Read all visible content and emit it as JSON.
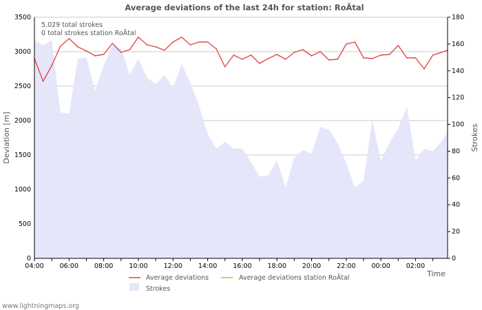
{
  "chart_data": {
    "type": "line",
    "title": "Average deviations of the last 24h for station: RoÃ\u0002tal",
    "xlabel": "Time",
    "ylabel_left": "Deviation  [m]",
    "ylabel_right": "Strokes",
    "x_ticks": [
      "04:00",
      "06:00",
      "08:00",
      "10:00",
      "12:00",
      "14:00",
      "16:00",
      "18:00",
      "20:00",
      "22:00",
      "00:00",
      "02:00"
    ],
    "x_range_hours": [
      0,
      23.85
    ],
    "ylim_left": [
      0,
      3500
    ],
    "y_ticks_left": [
      0,
      500,
      1000,
      1500,
      2000,
      2500,
      3000,
      3500
    ],
    "ylim_right": [
      0,
      180
    ],
    "y_ticks_right": [
      0,
      20,
      40,
      60,
      80,
      100,
      120,
      140,
      160,
      180
    ],
    "grid": true,
    "annotations": [
      "5.029 total strokes",
      "0 total strokes station RoÃ\u0002tal"
    ],
    "series": [
      {
        "name": "Average deviations",
        "axis": "left",
        "color": "#e04848",
        "x_hours": [
          0,
          0.5,
          1,
          1.5,
          2,
          2.5,
          3,
          3.5,
          4,
          4.5,
          5,
          5.5,
          6,
          6.5,
          7,
          7.5,
          8,
          8.5,
          9,
          9.5,
          10,
          10.5,
          11,
          11.5,
          12,
          12.5,
          13,
          13.5,
          14,
          14.5,
          15,
          15.5,
          16,
          16.5,
          17,
          17.5,
          18,
          18.5,
          19,
          19.5,
          20,
          20.5,
          21,
          21.5,
          22,
          22.5,
          23,
          23.5,
          23.85
        ],
        "values": [
          2900,
          2570,
          2800,
          3080,
          3190,
          3070,
          3010,
          2940,
          2960,
          3120,
          2990,
          3030,
          3210,
          3100,
          3070,
          3020,
          3140,
          3210,
          3100,
          3140,
          3140,
          3040,
          2780,
          2950,
          2890,
          2950,
          2830,
          2900,
          2960,
          2890,
          2990,
          3030,
          2940,
          3000,
          2880,
          2890,
          3110,
          3140,
          2910,
          2900,
          2950,
          2960,
          3090,
          2910,
          2910,
          2750,
          2950,
          2990,
          3020
        ]
      },
      {
        "name": "Average deviations station RoÃ\u0002tal",
        "axis": "left",
        "color": "#f0a040",
        "x_hours": [],
        "values": []
      },
      {
        "name": "Strokes",
        "axis": "right",
        "type": "area",
        "color": "#e6e6fa",
        "x_hours": [
          0,
          0.5,
          1,
          1.5,
          2,
          2.5,
          3,
          3.5,
          4,
          4.5,
          5,
          5.5,
          6,
          6.5,
          7,
          7.5,
          8,
          8.5,
          9,
          9.5,
          10,
          10.5,
          11,
          11.5,
          12,
          12.5,
          13,
          13.5,
          14,
          14.5,
          15,
          15.5,
          16,
          16.5,
          17,
          17.5,
          18,
          18.5,
          19,
          19.5,
          20,
          20.5,
          21,
          21.5,
          22,
          22.5,
          23,
          23.5,
          23.85
        ],
        "values": [
          163,
          159,
          163,
          109,
          108,
          149,
          150,
          125,
          144,
          159,
          157,
          137,
          149,
          135,
          130,
          137,
          127,
          145,
          131,
          114,
          93,
          82,
          87,
          82,
          82,
          72,
          61,
          62,
          73,
          53,
          75,
          81,
          78,
          98,
          96,
          86,
          71,
          53,
          58,
          103,
          73,
          86,
          97,
          113,
          73,
          82,
          80,
          87,
          95
        ]
      }
    ],
    "legend": [
      "Average deviations",
      "Average deviations station RoÃ\u0002tal",
      "Strokes"
    ],
    "legend_position": "bottom"
  },
  "footer": "www.lightningmaps.org"
}
